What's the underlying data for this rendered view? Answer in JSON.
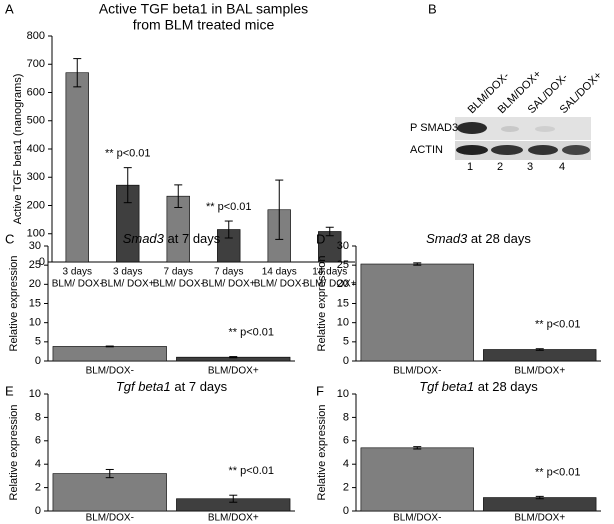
{
  "chart_data": [
    {
      "type": "bar",
      "panel": "A",
      "title": [
        "Active TGF beta1 in BAL samples",
        "from BLM treated mice"
      ],
      "ylabel": "Active TGF beta1 (nanograms)",
      "categories": [
        [
          "3 days",
          "BLM/ DOX-"
        ],
        [
          "3 days",
          "BLM/ DOX+"
        ],
        [
          "7 days",
          "BLM/ DOX-"
        ],
        [
          "7 days",
          "BLM/ DOX+"
        ],
        [
          "14 days",
          "BLM/ DOX-"
        ],
        [
          "14 days",
          "BLM/ DOX+"
        ]
      ],
      "values": [
        670,
        272,
        233,
        115,
        185,
        108
      ],
      "errors": [
        50,
        62,
        40,
        30,
        105,
        15
      ],
      "colors": [
        "#7f7f7f",
        "#3f3f3f",
        "#7f7f7f",
        "#3f3f3f",
        "#7f7f7f",
        "#3f3f3f"
      ],
      "annotations": [
        null,
        "** p<0.01",
        null,
        "** p<0.01",
        null,
        null
      ],
      "ylim": [
        0,
        800
      ],
      "yticks": [
        0,
        100,
        200,
        300,
        400,
        500,
        600,
        700,
        800
      ]
    },
    {
      "type": "bar",
      "panel": "C",
      "title": [
        {
          "text": "Smad3",
          "italic": true
        },
        {
          "text": " at 7 days"
        }
      ],
      "ylabel": "Relative expression",
      "categories": [
        "BLM/DOX-",
        "BLM/DOX+"
      ],
      "values": [
        3.8,
        1.0
      ],
      "errors": [
        0.1,
        0.15
      ],
      "colors": [
        "#7f7f7f",
        "#3f3f3f"
      ],
      "annotations": [
        null,
        "** p<0.01"
      ],
      "ylim": [
        0,
        30
      ],
      "yticks": [
        0,
        5,
        10,
        15,
        20,
        25,
        30
      ]
    },
    {
      "type": "bar",
      "panel": "D",
      "title": [
        {
          "text": "Smad3",
          "italic": true
        },
        {
          "text": " at 28 days"
        }
      ],
      "ylabel": "Relative expression",
      "categories": [
        "BLM/DOX-",
        "BLM/DOX+"
      ],
      "values": [
        25.3,
        3.0
      ],
      "errors": [
        0.3,
        0.2
      ],
      "colors": [
        "#7f7f7f",
        "#3f3f3f"
      ],
      "annotations": [
        null,
        "** p<0.01"
      ],
      "ylim": [
        0,
        30
      ],
      "yticks": [
        0,
        5,
        10,
        15,
        20,
        25,
        30
      ]
    },
    {
      "type": "bar",
      "panel": "E",
      "title": [
        {
          "text": "Tgf beta1",
          "italic": true
        },
        {
          "text": " at 7 days"
        }
      ],
      "ylabel": "Relative expression",
      "categories": [
        "BLM/DOX-",
        "BLM/DOX+"
      ],
      "values": [
        3.2,
        1.05
      ],
      "errors": [
        0.35,
        0.3
      ],
      "colors": [
        "#7f7f7f",
        "#3f3f3f"
      ],
      "annotations": [
        null,
        "** p<0.01"
      ],
      "ylim": [
        0,
        10
      ],
      "yticks": [
        0,
        2,
        4,
        6,
        8,
        10
      ]
    },
    {
      "type": "bar",
      "panel": "F",
      "title": [
        {
          "text": "Tgf beta1",
          "italic": true
        },
        {
          "text": " at 28 days"
        }
      ],
      "ylabel": "Relative expression",
      "categories": [
        "BLM/DOX-",
        "BLM/DOX+"
      ],
      "values": [
        5.4,
        1.15
      ],
      "errors": [
        0.1,
        0.1
      ],
      "colors": [
        "#7f7f7f",
        "#3f3f3f"
      ],
      "annotations": [
        null,
        "** p<0.01"
      ],
      "ylim": [
        0,
        10
      ],
      "yticks": [
        0,
        2,
        4,
        6,
        8,
        10
      ]
    }
  ],
  "blot": {
    "panel": "B",
    "lanes": [
      "BLM/DOX-",
      "BLM/DOX+",
      "SAL/DOX-",
      "SAL/DOX+"
    ],
    "lane_numbers": [
      "1",
      "2",
      "3",
      "4"
    ],
    "rows": [
      "P SMAD3",
      "ACTIN"
    ]
  }
}
